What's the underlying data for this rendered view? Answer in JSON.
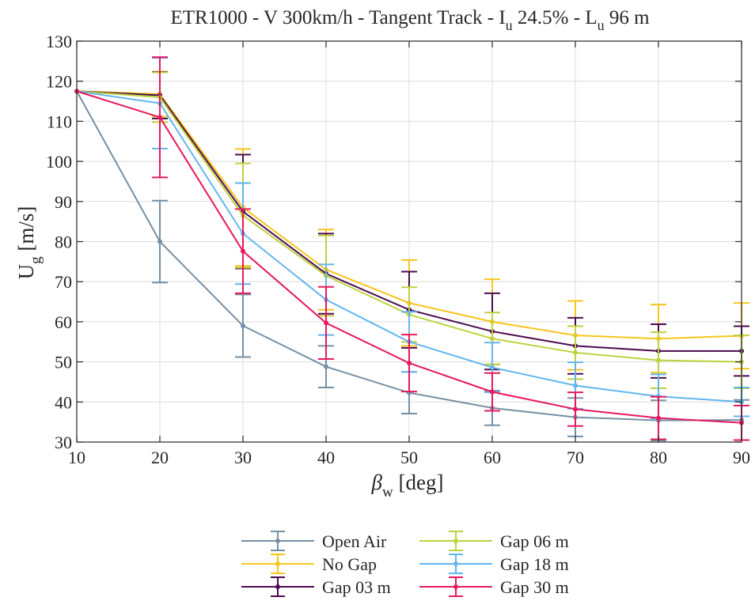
{
  "chart_data": {
    "type": "line",
    "title": {
      "t1": "ETR1000 - V 300km/h - Tangent Track - I",
      "s1": "u",
      "t2": " 24.5% - L",
      "s2": "u",
      "t3": " 96 m"
    },
    "xlabel": {
      "main": "β",
      "sub": "w",
      "rest": " [deg]"
    },
    "ylabel": {
      "main": "U",
      "sub": "g",
      "rest": " [m/s]"
    },
    "xlim": [
      10,
      90
    ],
    "ylim": [
      30,
      130
    ],
    "xticks": [
      "10",
      "20",
      "30",
      "40",
      "50",
      "60",
      "70",
      "80",
      "90"
    ],
    "yticks": [
      "30",
      "40",
      "50",
      "60",
      "70",
      "80",
      "90",
      "100",
      "110",
      "120",
      "130"
    ],
    "grid": true,
    "legend_position": "bottom-outside",
    "x": [
      10,
      20,
      30,
      40,
      50,
      60,
      70,
      80,
      90
    ],
    "series": [
      {
        "name": "Open Air",
        "color": "#7590a5",
        "values": [
          117.5,
          80,
          59,
          48.8,
          42.3,
          38.5,
          36.2,
          35.4,
          35.5
        ],
        "err": [
          0,
          10.2,
          7.8,
          5.2,
          5.2,
          4.3,
          4.8,
          5,
          5
        ]
      },
      {
        "name": "No Gap",
        "color": "#f8c51c",
        "values": [
          117.5,
          116.8,
          88.5,
          73,
          64.7,
          60,
          56.6,
          55.8,
          56.5
        ],
        "err": [
          0,
          5.6,
          14.6,
          10,
          10.7,
          10.6,
          8.6,
          8.5,
          8.2
        ]
      },
      {
        "name": "Gap 03 m",
        "color": "#4b0b4e",
        "values": [
          117.5,
          116.5,
          87.5,
          72,
          63,
          57.6,
          54,
          52.7,
          52.7
        ],
        "err": [
          0,
          5.8,
          14.2,
          10,
          9.5,
          9.5,
          7,
          6.7,
          6.2
        ]
      },
      {
        "name": "Gap 06 m",
        "color": "#bed23e",
        "values": [
          117.5,
          116,
          86.5,
          71.5,
          61.8,
          55.8,
          52.3,
          50.4,
          50
        ],
        "err": [
          0,
          6.2,
          13,
          10,
          6.8,
          6.5,
          6.6,
          7,
          6.6
        ]
      },
      {
        "name": "Gap 18 m",
        "color": "#62b6ee",
        "values": [
          117.5,
          114.5,
          82,
          65.5,
          55,
          48.6,
          44.1,
          41.4,
          40
        ],
        "err": [
          0,
          11.3,
          12.6,
          8.8,
          7.5,
          6.2,
          5.8,
          5.5,
          3.6
        ]
      },
      {
        "name": "Gap 30 m",
        "color": "#e7195d",
        "values": [
          117.5,
          111,
          77.6,
          59.7,
          49.7,
          42.5,
          38.2,
          36,
          34.8
        ],
        "err": [
          0,
          15,
          10.5,
          9,
          7.1,
          4.7,
          4.2,
          5.3,
          4.3
        ]
      }
    ]
  }
}
